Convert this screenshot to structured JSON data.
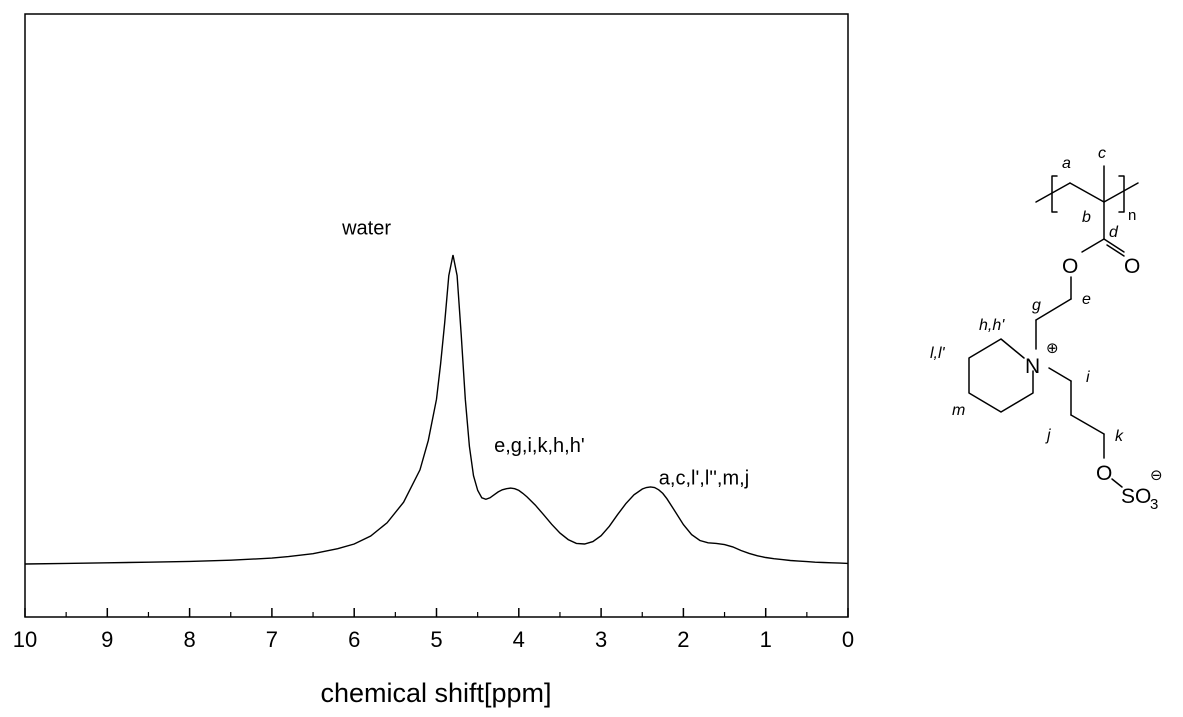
{
  "chart_data": {
    "type": "line",
    "xlabel": "chemical shift[ppm]",
    "ylabel": "",
    "xlim": [
      10,
      0
    ],
    "x_reversed": true,
    "x_major_ticks": [
      10,
      9,
      8,
      7,
      6,
      5,
      4,
      3,
      2,
      1,
      0
    ],
    "x_minor_ticks": [
      9.5,
      8.5,
      7.5,
      6.5,
      5.5,
      4.5,
      3.5,
      2.5,
      1.5,
      0.5
    ],
    "ylim": [
      0,
      1.2
    ],
    "y_tick_labels": false,
    "grid": false,
    "legend": "none",
    "series": [
      {
        "x": [
          10,
          9.5,
          9,
          8.5,
          8,
          7.5,
          7,
          6.8,
          6.5,
          6.2,
          6.0,
          5.8,
          5.6,
          5.4,
          5.2,
          5.1,
          5.0,
          4.95,
          4.9,
          4.85,
          4.8,
          4.75,
          4.7,
          4.65,
          4.6,
          4.55,
          4.5,
          4.45,
          4.4,
          4.35,
          4.3,
          4.25,
          4.2,
          4.15,
          4.1,
          4.05,
          4.0,
          3.95,
          3.9,
          3.8,
          3.7,
          3.6,
          3.5,
          3.4,
          3.3,
          3.2,
          3.1,
          3.0,
          2.9,
          2.8,
          2.7,
          2.6,
          2.5,
          2.45,
          2.4,
          2.35,
          2.3,
          2.25,
          2.2,
          2.1,
          2.0,
          1.9,
          1.8,
          1.7,
          1.6,
          1.5,
          1.4,
          1.3,
          1.2,
          1.1,
          1.0,
          0.9,
          0.8,
          0.7,
          0.6,
          0.5,
          0.4,
          0.3,
          0.2,
          0.1,
          0.0
        ],
        "y": [
          0.0,
          0.002,
          0.004,
          0.006,
          0.009,
          0.013,
          0.02,
          0.025,
          0.035,
          0.052,
          0.068,
          0.095,
          0.14,
          0.21,
          0.32,
          0.42,
          0.56,
          0.68,
          0.82,
          0.98,
          1.05,
          0.98,
          0.78,
          0.56,
          0.4,
          0.3,
          0.25,
          0.225,
          0.22,
          0.225,
          0.235,
          0.245,
          0.252,
          0.256,
          0.258,
          0.256,
          0.25,
          0.24,
          0.228,
          0.2,
          0.168,
          0.135,
          0.105,
          0.083,
          0.07,
          0.068,
          0.076,
          0.096,
          0.128,
          0.168,
          0.205,
          0.235,
          0.255,
          0.26,
          0.262,
          0.26,
          0.252,
          0.24,
          0.222,
          0.178,
          0.134,
          0.1,
          0.08,
          0.072,
          0.07,
          0.066,
          0.058,
          0.046,
          0.036,
          0.028,
          0.022,
          0.018,
          0.015,
          0.012,
          0.01,
          0.008,
          0.006,
          0.005,
          0.004,
          0.003,
          0.002
        ]
      }
    ],
    "annotations": [
      {
        "text": "water",
        "x": 5.85,
        "y": 1.12
      },
      {
        "text": "e,g,i,k,h,h'",
        "x": 3.75,
        "y": 0.38
      },
      {
        "text": "a,c,l',l'',m,j",
        "x": 1.75,
        "y": 0.27
      }
    ]
  },
  "structure": {
    "labels": {
      "a": "a",
      "b": "b",
      "c": "c",
      "d": "d",
      "e": "e",
      "g": "g",
      "hh": "h,h'",
      "ll": "l,l'",
      "m": "m",
      "i": "i",
      "j": "j",
      "k": "k",
      "n": "n"
    },
    "atoms": {
      "O_ester": "O",
      "O_carbonyl": "O",
      "N": "N",
      "O_sulfo": "O",
      "SO3": "SO",
      "SO3_sub": "3"
    },
    "charges": {
      "plus": "⊕",
      "minus": "⊖"
    }
  }
}
